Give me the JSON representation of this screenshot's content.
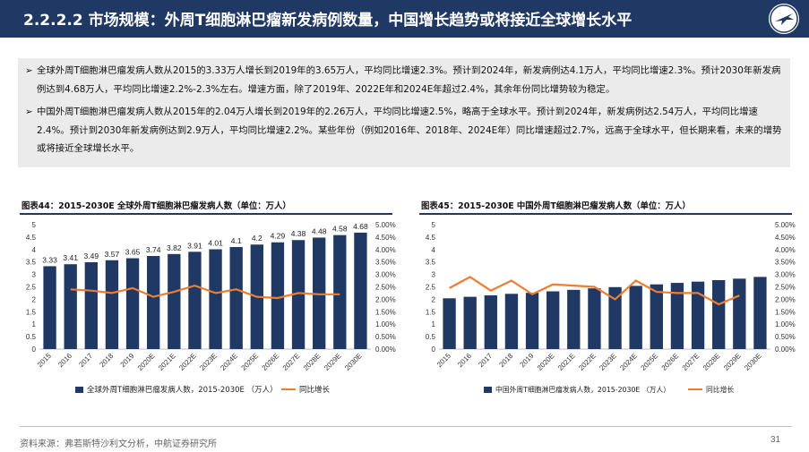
{
  "header": {
    "title": "2.2.2.2 市场规模：外周T细胞淋巴瘤新发病例数量，中国增长趋势或将接近全球增长水平",
    "logo_icon": "aircraft-logo-icon"
  },
  "summary": {
    "bullets": [
      "全球外周T细胞淋巴瘤发病人数从2015的3.33万人增长到2019年的3.65万人，平均同比增速2.3%。预计到2024年，新发病例达4.1万人，平均同比增速2.3%。预计2030年新发病例达到4.68万人，平均同比增速2.2%-2.3%左右。增速方面，除了2019年、2022E年和2024E年超过2.4%，其余年份同比增势较为稳定。",
      "中国外周T细胞淋巴瘤发病人数从2015年的2.04万人增长到2019年的2.26万人，平均同比增速2.5%，略高于全球水平。预计到2024年，新发病例达2.54万人，平均同比增速2.4%。预计到2030年新发病例达到2.9万人，平均同比增速2.2%。某些年份（例如2016年、2018年、2024E年）同比增速超过2.7%，远高于全球水平，但长期来看，未来的增势或将接近全球增长水平。"
    ],
    "arrow": "➢"
  },
  "charts": [
    {
      "title": "图表44：2015-2030E 全球外周T细胞淋巴瘤发病人数（单位：万人）"
    },
    {
      "title": "图表45：2015-2030E 中国外周T细胞淋巴瘤发病人数（单位：万人）"
    }
  ],
  "chart_data": [
    {
      "type": "bar",
      "title": "图表44：2015-2030E 全球外周T细胞淋巴瘤发病人数（单位：万人）",
      "categories": [
        "2015",
        "2016",
        "2017",
        "2018",
        "2019",
        "2020E",
        "2021E",
        "2022E",
        "2023E",
        "2024E",
        "2025E",
        "2026E",
        "2027E",
        "2028E",
        "2029E",
        "2030E"
      ],
      "series": [
        {
          "name": "全球外周T细胞淋巴瘤发病人数，2015-2030E （万人）",
          "type": "bar",
          "axis": "left",
          "values": [
            3.33,
            3.41,
            3.49,
            3.57,
            3.65,
            3.74,
            3.82,
            3.91,
            4.01,
            4.1,
            4.2,
            4.29,
            4.38,
            4.48,
            4.58,
            4.68
          ],
          "data_labels": [
            "3.33",
            "3.41",
            "3.49",
            "3.57",
            "3.65",
            "3.74",
            "3.82",
            "3.91",
            "4.01",
            "4.1",
            "4.2",
            "4.29",
            "4.38",
            "4.48",
            "4.58",
            "4.68"
          ]
        },
        {
          "name": "同比增长",
          "type": "line",
          "axis": "right",
          "values": [
            null,
            2.4,
            2.35,
            2.25,
            2.45,
            2.1,
            2.3,
            2.55,
            2.25,
            2.4,
            2.1,
            2.05,
            2.25,
            2.2,
            2.2,
            null
          ]
        }
      ],
      "ylim_left": [
        0,
        5
      ],
      "yticks_left": [
        "0",
        "0.5",
        "1",
        "1.5",
        "2",
        "2.5",
        "3",
        "3.5",
        "4",
        "4.5",
        "5"
      ],
      "ylim_right": [
        0,
        5
      ],
      "yticks_right": [
        "0.00%",
        "0.50%",
        "1.00%",
        "1.50%",
        "2.00%",
        "2.50%",
        "3.00%",
        "3.50%",
        "4.00%",
        "4.50%",
        "5.00%"
      ],
      "legend_position": "bottom",
      "colors": {
        "bar": "#1f3864",
        "line": "#ed7d31"
      }
    },
    {
      "type": "bar",
      "title": "图表45：2015-2030E 中国外周T细胞淋巴瘤发病人数（单位：万人）",
      "categories": [
        "2015",
        "2016",
        "2017",
        "2018",
        "2019",
        "2020E",
        "2021E",
        "2022E",
        "2023E",
        "2024E",
        "2025E",
        "2026E",
        "2027E",
        "2028E",
        "2029E",
        "2030E"
      ],
      "series": [
        {
          "name": "中国外周T细胞淋巴瘤发病人数，2015-2030E （万人）",
          "type": "bar",
          "axis": "left",
          "values": [
            2.04,
            2.1,
            2.16,
            2.22,
            2.26,
            2.32,
            2.38,
            2.44,
            2.49,
            2.54,
            2.6,
            2.66,
            2.71,
            2.77,
            2.83,
            2.9
          ]
        },
        {
          "name": "同比增长",
          "type": "line",
          "axis": "right",
          "values": [
            2.45,
            2.9,
            2.35,
            2.75,
            2.2,
            2.6,
            2.55,
            2.5,
            2.0,
            2.75,
            2.3,
            2.25,
            2.25,
            1.8,
            2.15,
            null
          ]
        }
      ],
      "ylim_left": [
        0,
        5
      ],
      "yticks_left": [
        "0",
        "0.5",
        "1",
        "1.5",
        "2",
        "2.5",
        "3",
        "3.5",
        "4",
        "4.5",
        "5"
      ],
      "ylim_right": [
        0,
        5
      ],
      "yticks_right": [
        "0.00%",
        "0.50%",
        "1.00%",
        "1.50%",
        "2.00%",
        "2.50%",
        "3.00%",
        "3.50%",
        "4.00%",
        "4.50%",
        "5.00%"
      ],
      "legend_position": "bottom",
      "colors": {
        "bar": "#1f3864",
        "line": "#ed7d31"
      }
    }
  ],
  "footer": {
    "source": "资料来源：弗若斯特沙利文分析，中航证券研究所",
    "page": "31"
  }
}
